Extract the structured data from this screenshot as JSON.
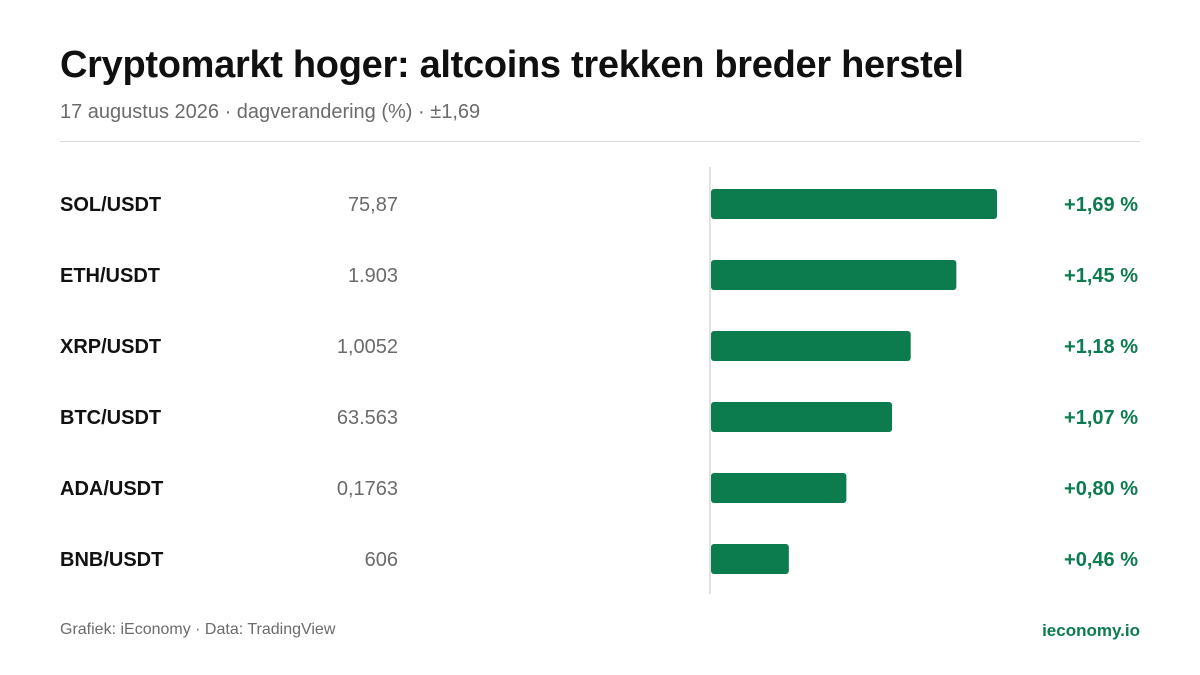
{
  "header": {
    "title": "Cryptomarkt hoger: altcoins trekken breder herstel",
    "subtitle": "17 augustus 2026 · dagverandering (%) · ±1,69"
  },
  "footer": {
    "source": "Grafiek: iEconomy · Data: TradingView",
    "brand": "ieconomy.io"
  },
  "colors": {
    "bar": "#0c7c4f",
    "change_text": "#0c7c4f",
    "pair_text": "#111111",
    "price_text": "#6b6b6b",
    "axis": "#d9d9d9"
  },
  "chart_data": {
    "type": "bar",
    "orientation": "horizontal",
    "categories": [
      "SOL/USDT",
      "ETH/USDT",
      "XRP/USDT",
      "BTC/USDT",
      "ADA/USDT",
      "BNB/USDT"
    ],
    "prices": [
      "75,87",
      "1.903",
      "1,0052",
      "63.563",
      "0,1763",
      "606"
    ],
    "values": [
      1.69,
      1.45,
      1.18,
      1.07,
      0.8,
      0.46
    ],
    "value_labels": [
      "+1,69 %",
      "+1,45 %",
      "+1,18 %",
      "+1,07 %",
      "+0,80 %",
      "+0,46 %"
    ],
    "xlim": [
      0,
      1.69
    ],
    "grid": false,
    "legend": "none"
  }
}
